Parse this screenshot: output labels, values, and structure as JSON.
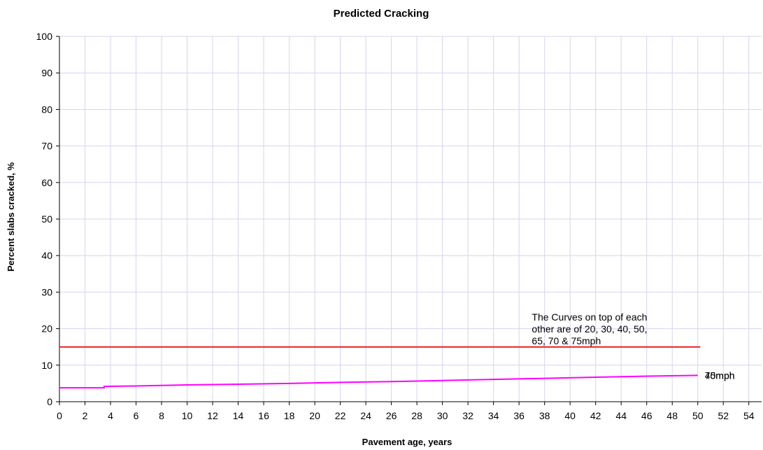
{
  "chart_data": {
    "type": "line",
    "title": "Predicted Cracking",
    "xlabel": "Pavement age, years",
    "ylabel": "Percent slabs cracked, %",
    "xlim": [
      0,
      55
    ],
    "ylim": [
      0,
      100
    ],
    "xticks": [
      0,
      2,
      4,
      6,
      8,
      10,
      12,
      14,
      16,
      18,
      20,
      22,
      24,
      26,
      28,
      30,
      32,
      34,
      36,
      38,
      40,
      42,
      44,
      46,
      48,
      50,
      52,
      54
    ],
    "yticks": [
      0,
      10,
      20,
      30,
      40,
      50,
      60,
      70,
      80,
      90,
      100
    ],
    "grid": true,
    "legend": "none",
    "colors": {
      "grid": "#d4d4f0",
      "axis": "#000000",
      "limit_line": "#e82020",
      "curve": "#ff00ff"
    },
    "reference_line": {
      "y": 15,
      "x": [
        0,
        50.2
      ]
    },
    "series": [
      {
        "x": [
          0,
          3.5,
          3.5,
          6,
          10,
          14,
          18,
          22,
          26,
          30,
          34,
          38,
          42,
          46,
          50
        ],
        "y": [
          3.8,
          3.8,
          4.2,
          4.3,
          4.6,
          4.8,
          5.0,
          5.3,
          5.5,
          5.8,
          6.1,
          6.4,
          6.7,
          7.0,
          7.2
        ]
      }
    ],
    "annotations": [
      {
        "lines": [
          "The Curves on top of each",
          "other are of 20, 30, 40, 50,",
          "65, 70 & 75mph"
        ],
        "x": 37,
        "y": 22.2
      }
    ],
    "end_labels": [
      "75mph",
      "40mph"
    ]
  }
}
